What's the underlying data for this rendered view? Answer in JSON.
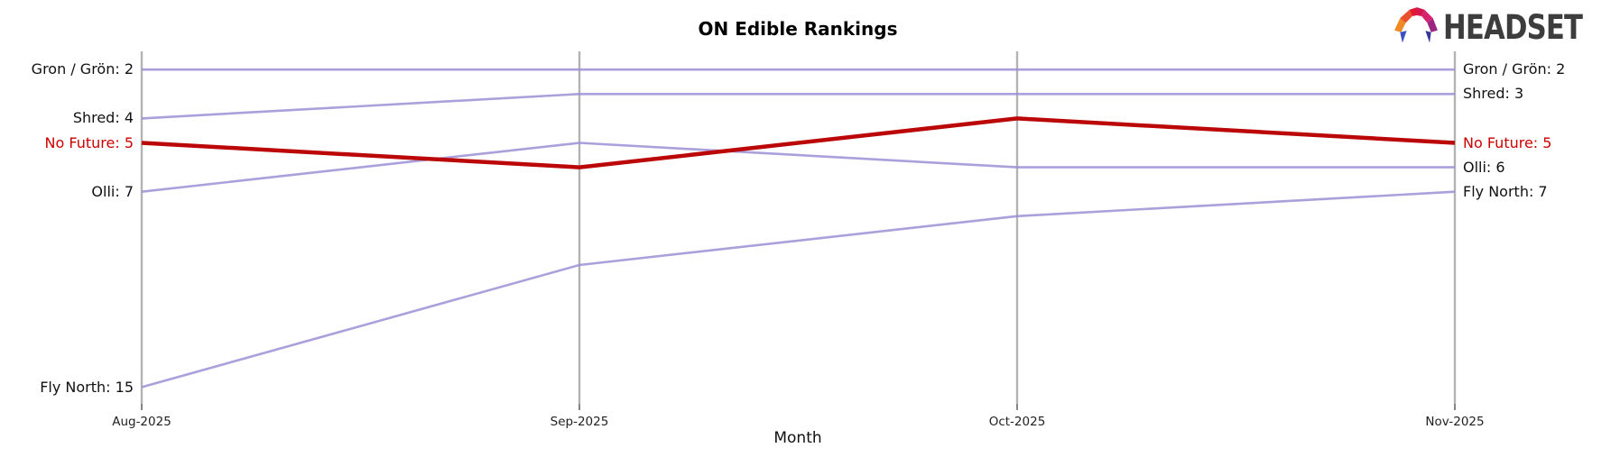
{
  "figure": {
    "title": "ON Edible Rankings",
    "xlabel": "Month"
  },
  "logo": {
    "text": "HEADSET",
    "icon": "headset-faceted-mark"
  },
  "chart_data": {
    "type": "line",
    "subtype": "bump-ranking",
    "title": "ON Edible Rankings",
    "xlabel": "Month",
    "ylabel": "Rank (1 = top, axis inverted, unlabeled)",
    "x": [
      "Aug-2025",
      "Sep-2025",
      "Oct-2025",
      "Nov-2025"
    ],
    "series": [
      {
        "name": "Gron / Grön",
        "values": [
          2,
          2,
          2,
          2
        ],
        "color": "#9e8fd6",
        "highlighted": false,
        "left_label": "Gron / Grön: 2",
        "right_label": "Gron / Grön: 2"
      },
      {
        "name": "Shred",
        "values": [
          4,
          3,
          3,
          3
        ],
        "color": "#9e8fd6",
        "highlighted": false,
        "left_label": "Shred: 4",
        "right_label": "Shred: 3"
      },
      {
        "name": "No Future",
        "values": [
          5,
          6,
          4,
          5
        ],
        "color": "#bb0707",
        "highlighted": true,
        "left_label": "No Future: 5",
        "right_label": "No Future: 5"
      },
      {
        "name": "Olli",
        "values": [
          7,
          5,
          6,
          6
        ],
        "color": "#9e8fd6",
        "highlighted": false,
        "left_label": "Olli: 7",
        "right_label": "Olli: 6"
      },
      {
        "name": "Fly North",
        "values": [
          15,
          10,
          8,
          7
        ],
        "color": "#9e8fd6",
        "highlighted": false,
        "left_label": "Fly North: 15",
        "right_label": "Fly North: 7"
      }
    ],
    "rank_range": [
      1,
      15
    ],
    "grid": "vertical-gridlines-only",
    "legend": "inline-edge-labels"
  },
  "colors": {
    "line_default": "#9e8fd6",
    "line_highlight": "#bb0707",
    "label_highlight": "#cc0000",
    "label_text": "#111111",
    "gridline": "#b3b3b3",
    "tick": "#333333",
    "logo_text": "#3d3d3d"
  }
}
